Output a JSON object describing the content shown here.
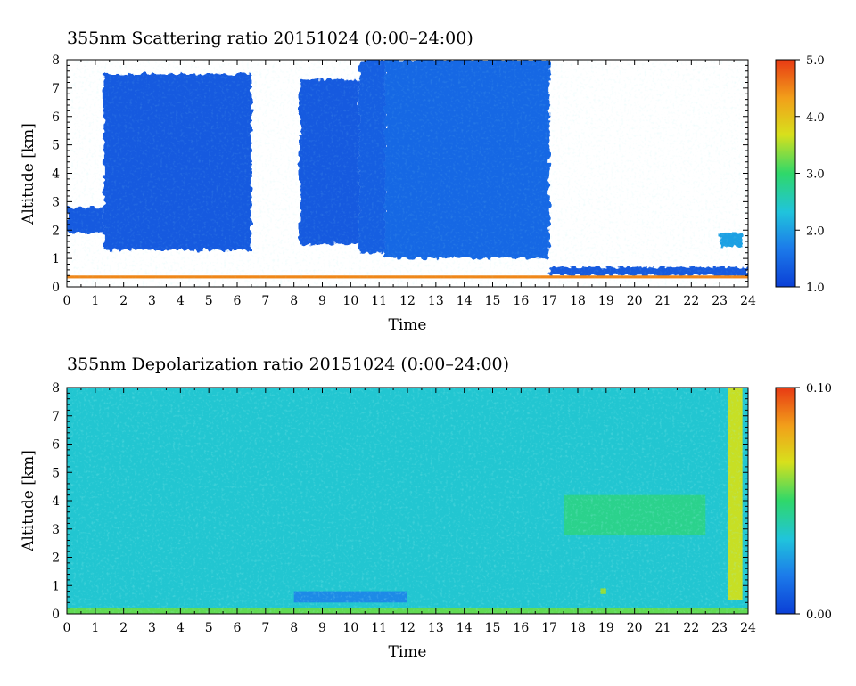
{
  "chart_data": [
    {
      "type": "heatmap",
      "title": "355nm Scattering ratio  20151024 (0:00–24:00)",
      "xlabel": "Time",
      "ylabel": "Altitude [km]",
      "xlim": [
        0,
        24
      ],
      "ylim": [
        0,
        8
      ],
      "xticks": [
        "0",
        "1",
        "2",
        "3",
        "4",
        "5",
        "6",
        "7",
        "8",
        "9",
        "10",
        "11",
        "12",
        "13",
        "14",
        "15",
        "16",
        "17",
        "18",
        "19",
        "20",
        "21",
        "22",
        "23",
        "24"
      ],
      "yticks": [
        "0",
        "1",
        "2",
        "3",
        "4",
        "5",
        "6",
        "7",
        "8"
      ],
      "colorbar": {
        "range": [
          1.0,
          5.0
        ],
        "ticks": [
          {
            "value": 1.0,
            "label": "1.0"
          },
          {
            "value": 2.0,
            "label": "2.0"
          },
          {
            "value": 3.0,
            "label": "3.0"
          },
          {
            "value": 4.0,
            "label": "4.0"
          },
          {
            "value": 5.0,
            "label": "5.0"
          }
        ],
        "colors": [
          "#0b3fd6",
          "#1c7bea",
          "#20c4dc",
          "#2fd86a",
          "#d8e01c",
          "#f2a01a",
          "#e83a14"
        ]
      },
      "regions": [
        {
          "time": [
            0.0,
            1.3
          ],
          "alt": [
            1.9,
            2.8
          ],
          "value": 1.3
        },
        {
          "time": [
            1.3,
            6.5
          ],
          "alt": [
            1.3,
            7.5
          ],
          "value": 1.3
        },
        {
          "time": [
            8.2,
            10.3
          ],
          "alt": [
            1.5,
            7.3
          ],
          "value": 1.3
        },
        {
          "time": [
            10.3,
            11.2
          ],
          "alt": [
            1.2,
            8.0
          ],
          "value": 1.35
        },
        {
          "time": [
            11.2,
            17.0
          ],
          "alt": [
            1.0,
            8.0
          ],
          "value": 1.45
        },
        {
          "time": [
            17.0,
            24.0
          ],
          "alt": [
            0.4,
            0.7
          ],
          "value": 1.3
        },
        {
          "time": [
            23.0,
            23.8
          ],
          "alt": [
            1.4,
            1.9
          ],
          "value": 2.0
        },
        {
          "time": [
            0.0,
            24.0
          ],
          "alt": [
            0.3,
            0.4
          ],
          "value": 4.5
        }
      ]
    },
    {
      "type": "heatmap",
      "title": "355nm Depolarization ratio  20151024 (0:00–24:00)",
      "xlabel": "Time",
      "ylabel": "Altitude [km]",
      "xlim": [
        0,
        24
      ],
      "ylim": [
        0,
        8
      ],
      "xticks": [
        "0",
        "1",
        "2",
        "3",
        "4",
        "5",
        "6",
        "7",
        "8",
        "9",
        "10",
        "11",
        "12",
        "13",
        "14",
        "15",
        "16",
        "17",
        "18",
        "19",
        "20",
        "21",
        "22",
        "23",
        "24"
      ],
      "yticks": [
        "0",
        "1",
        "2",
        "3",
        "4",
        "5",
        "6",
        "7",
        "8"
      ],
      "colorbar": {
        "range": [
          0.0,
          0.1
        ],
        "ticks": [
          {
            "value": 0.0,
            "label": "0.00"
          },
          {
            "value": 0.1,
            "label": "0.10"
          }
        ],
        "colors": [
          "#0b3fd6",
          "#1c7bea",
          "#20c4dc",
          "#2fd86a",
          "#d8e01c",
          "#f2a01a",
          "#e83a14"
        ]
      },
      "regions": [
        {
          "time": [
            0.0,
            24.0
          ],
          "alt": [
            0.0,
            8.0
          ],
          "value": 0.035
        },
        {
          "time": [
            8.0,
            12.0
          ],
          "alt": [
            0.4,
            0.8
          ],
          "value": 0.02
        },
        {
          "time": [
            17.5,
            22.5
          ],
          "alt": [
            2.8,
            4.2
          ],
          "value": 0.045
        },
        {
          "time": [
            18.8,
            19.0
          ],
          "alt": [
            0.7,
            0.9
          ],
          "value": 0.06
        },
        {
          "time": [
            23.3,
            23.8
          ],
          "alt": [
            0.5,
            8.0
          ],
          "value": 0.065
        },
        {
          "time": [
            0.0,
            24.0
          ],
          "alt": [
            0.0,
            0.2
          ],
          "value": 0.055
        }
      ]
    }
  ]
}
